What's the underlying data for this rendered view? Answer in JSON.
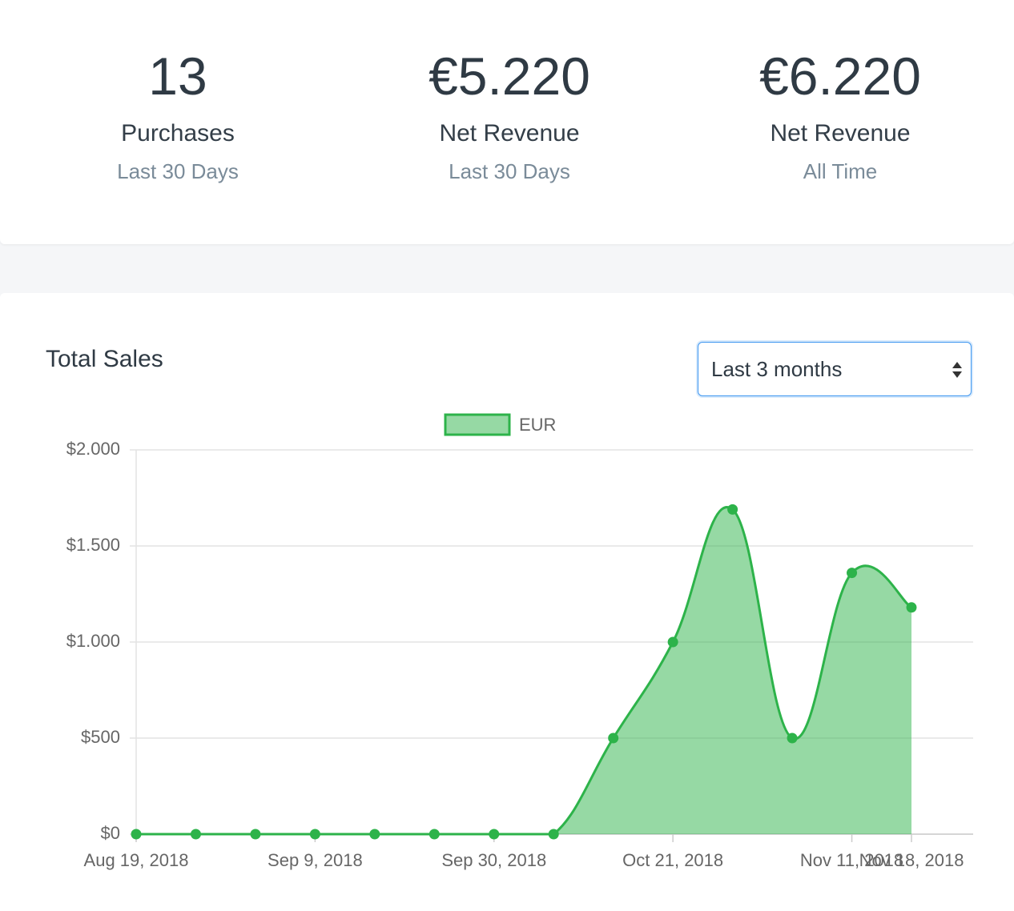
{
  "stats": [
    {
      "value": "13",
      "label": "Purchases",
      "period": "Last 30 Days"
    },
    {
      "value": "€5.220",
      "label": "Net Revenue",
      "period": "Last 30 Days"
    },
    {
      "value": "€6.220",
      "label": "Net Revenue",
      "period": "All Time"
    }
  ],
  "chart_data": {
    "type": "area",
    "title": "Total Sales",
    "range_select": "Last 3 months",
    "x": [
      "2018-08-19",
      "2018-08-26",
      "2018-09-02",
      "2018-09-09",
      "2018-09-16",
      "2018-09-23",
      "2018-09-30",
      "2018-10-07",
      "2018-10-14",
      "2018-10-21",
      "2018-10-28",
      "2018-11-04",
      "2018-11-11",
      "2018-11-18"
    ],
    "series": [
      {
        "name": "EUR",
        "color": "#2db34a",
        "values": [
          0,
          0,
          0,
          0,
          0,
          0,
          0,
          0,
          500,
          1000,
          1690,
          500,
          1360,
          1180
        ]
      }
    ],
    "xlim": [
      "2018-08-19",
      "2018-11-18"
    ],
    "xticks": [
      {
        "value": "2018-08-19",
        "label": "Aug 19, 2018"
      },
      {
        "value": "2018-09-09",
        "label": "Sep 9, 2018"
      },
      {
        "value": "2018-09-30",
        "label": "Sep 30, 2018"
      },
      {
        "value": "2018-10-21",
        "label": "Oct 21, 2018"
      },
      {
        "value": "2018-11-11",
        "label": "Nov 11, 2018"
      },
      {
        "value": "2018-11-18",
        "label": "Nov 18, 2018"
      }
    ],
    "ylim": [
      0,
      2000
    ],
    "yticks": [
      {
        "value": 0,
        "label": "$0"
      },
      {
        "value": 500,
        "label": "$500"
      },
      {
        "value": 1000,
        "label": "$1.000"
      },
      {
        "value": 1500,
        "label": "$1.500"
      },
      {
        "value": 2000,
        "label": "$2.000"
      }
    ],
    "grid": true,
    "legend": "top"
  }
}
